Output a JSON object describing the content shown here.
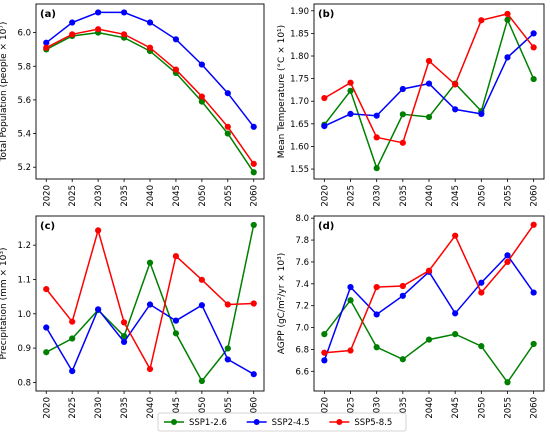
{
  "chart_data": [
    {
      "type": "line",
      "panel_label": "(a)",
      "ylabel": "Total Population (people × 10⁷)",
      "categories": [
        "2020",
        "2025",
        "2030",
        "2035",
        "2040",
        "2045",
        "2050",
        "2055",
        "2060"
      ],
      "ylim": [
        5.13,
        6.17
      ],
      "yticks": [
        5.2,
        5.4,
        5.6,
        5.8,
        6.0
      ],
      "ytick_labels": [
        "5.2",
        "5.4",
        "5.6",
        "5.8",
        "6.0"
      ],
      "series": [
        {
          "name": "SSP1-2.6",
          "values": [
            5.9,
            5.98,
            6.0,
            5.97,
            5.89,
            5.76,
            5.59,
            5.4,
            5.17
          ]
        },
        {
          "name": "SSP2-4.5",
          "values": [
            5.94,
            6.06,
            6.12,
            6.12,
            6.06,
            5.96,
            5.81,
            5.64,
            5.44
          ]
        },
        {
          "name": "SSP5-8.5",
          "values": [
            5.91,
            5.99,
            6.02,
            5.99,
            5.91,
            5.78,
            5.62,
            5.44,
            5.22
          ]
        }
      ]
    },
    {
      "type": "line",
      "panel_label": "(b)",
      "ylabel": "Mean Temperature (°C × 10¹)",
      "categories": [
        "2020",
        "2025",
        "2030",
        "2035",
        "2040",
        "2045",
        "2050",
        "2055",
        "2060"
      ],
      "ylim": [
        1.528,
        1.915
      ],
      "yticks": [
        1.55,
        1.6,
        1.65,
        1.7,
        1.75,
        1.8,
        1.85,
        1.9
      ],
      "ytick_labels": [
        "1.55",
        "1.60",
        "1.65",
        "1.70",
        "1.75",
        "1.80",
        "1.85",
        "1.90"
      ],
      "series": [
        {
          "name": "SSP1-2.6",
          "values": [
            1.648,
            1.723,
            1.552,
            1.671,
            1.665,
            1.739,
            1.678,
            1.88,
            1.749
          ]
        },
        {
          "name": "SSP2-4.5",
          "values": [
            1.645,
            1.672,
            1.668,
            1.727,
            1.739,
            1.682,
            1.672,
            1.797,
            1.85
          ]
        },
        {
          "name": "SSP5-8.5",
          "values": [
            1.707,
            1.741,
            1.62,
            1.608,
            1.789,
            1.737,
            1.879,
            1.893,
            1.819
          ]
        }
      ]
    },
    {
      "type": "line",
      "panel_label": "(c)",
      "ylabel": "Precipitation (mm × 10³)",
      "categories": [
        "2020",
        "2025",
        "2030",
        "2035",
        "2040",
        "2045",
        "2050",
        "2055",
        "2060"
      ],
      "ylim": [
        0.775,
        1.285
      ],
      "yticks": [
        0.8,
        0.9,
        1.0,
        1.1,
        1.2
      ],
      "ytick_labels": [
        "0.8",
        "0.9",
        "1.0",
        "1.1",
        "1.2"
      ],
      "series": [
        {
          "name": "SSP1-2.6",
          "values": [
            0.888,
            0.928,
            1.011,
            0.935,
            1.149,
            0.943,
            0.804,
            0.899,
            1.259
          ]
        },
        {
          "name": "SSP2-4.5",
          "values": [
            0.96,
            0.833,
            1.013,
            0.918,
            1.027,
            0.98,
            1.025,
            0.867,
            0.824
          ]
        },
        {
          "name": "SSP5-8.5",
          "values": [
            1.072,
            0.977,
            1.243,
            0.975,
            0.839,
            1.168,
            1.099,
            1.027,
            1.03
          ]
        }
      ]
    },
    {
      "type": "line",
      "panel_label": "(d)",
      "ylabel": "AGPP (gC/m²/yr × 10³)",
      "categories": [
        "2020",
        "2025",
        "2030",
        "2035",
        "2040",
        "2045",
        "2050",
        "2055",
        "2060"
      ],
      "ylim": [
        6.42,
        8.02
      ],
      "yticks": [
        6.6,
        6.8,
        7.0,
        7.2,
        7.4,
        7.6,
        7.8,
        8.0
      ],
      "ytick_labels": [
        "6.6",
        "6.8",
        "7.0",
        "7.2",
        "7.4",
        "7.6",
        "7.8",
        "8.0"
      ],
      "series": [
        {
          "name": "SSP1-2.6",
          "values": [
            6.94,
            7.25,
            6.82,
            6.71,
            6.89,
            6.94,
            6.83,
            6.5,
            6.85
          ]
        },
        {
          "name": "SSP2-4.5",
          "values": [
            6.7,
            7.37,
            7.12,
            7.29,
            7.51,
            7.13,
            7.41,
            7.66,
            7.32
          ]
        },
        {
          "name": "SSP5-8.5",
          "values": [
            6.77,
            6.79,
            7.37,
            7.38,
            7.52,
            7.84,
            7.32,
            7.6,
            7.94
          ]
        }
      ]
    }
  ],
  "legend": {
    "placement": "bottom-center",
    "items": [
      {
        "name": "SSP1-2.6",
        "color": "#008000"
      },
      {
        "name": "SSP2-4.5",
        "color": "#0000ff"
      },
      {
        "name": "SSP5-8.5",
        "color": "#ff0000"
      }
    ]
  },
  "colors": {
    "SSP1-2.6": "#008000",
    "SSP2-4.5": "#0000ff",
    "SSP5-8.5": "#ff0000"
  }
}
